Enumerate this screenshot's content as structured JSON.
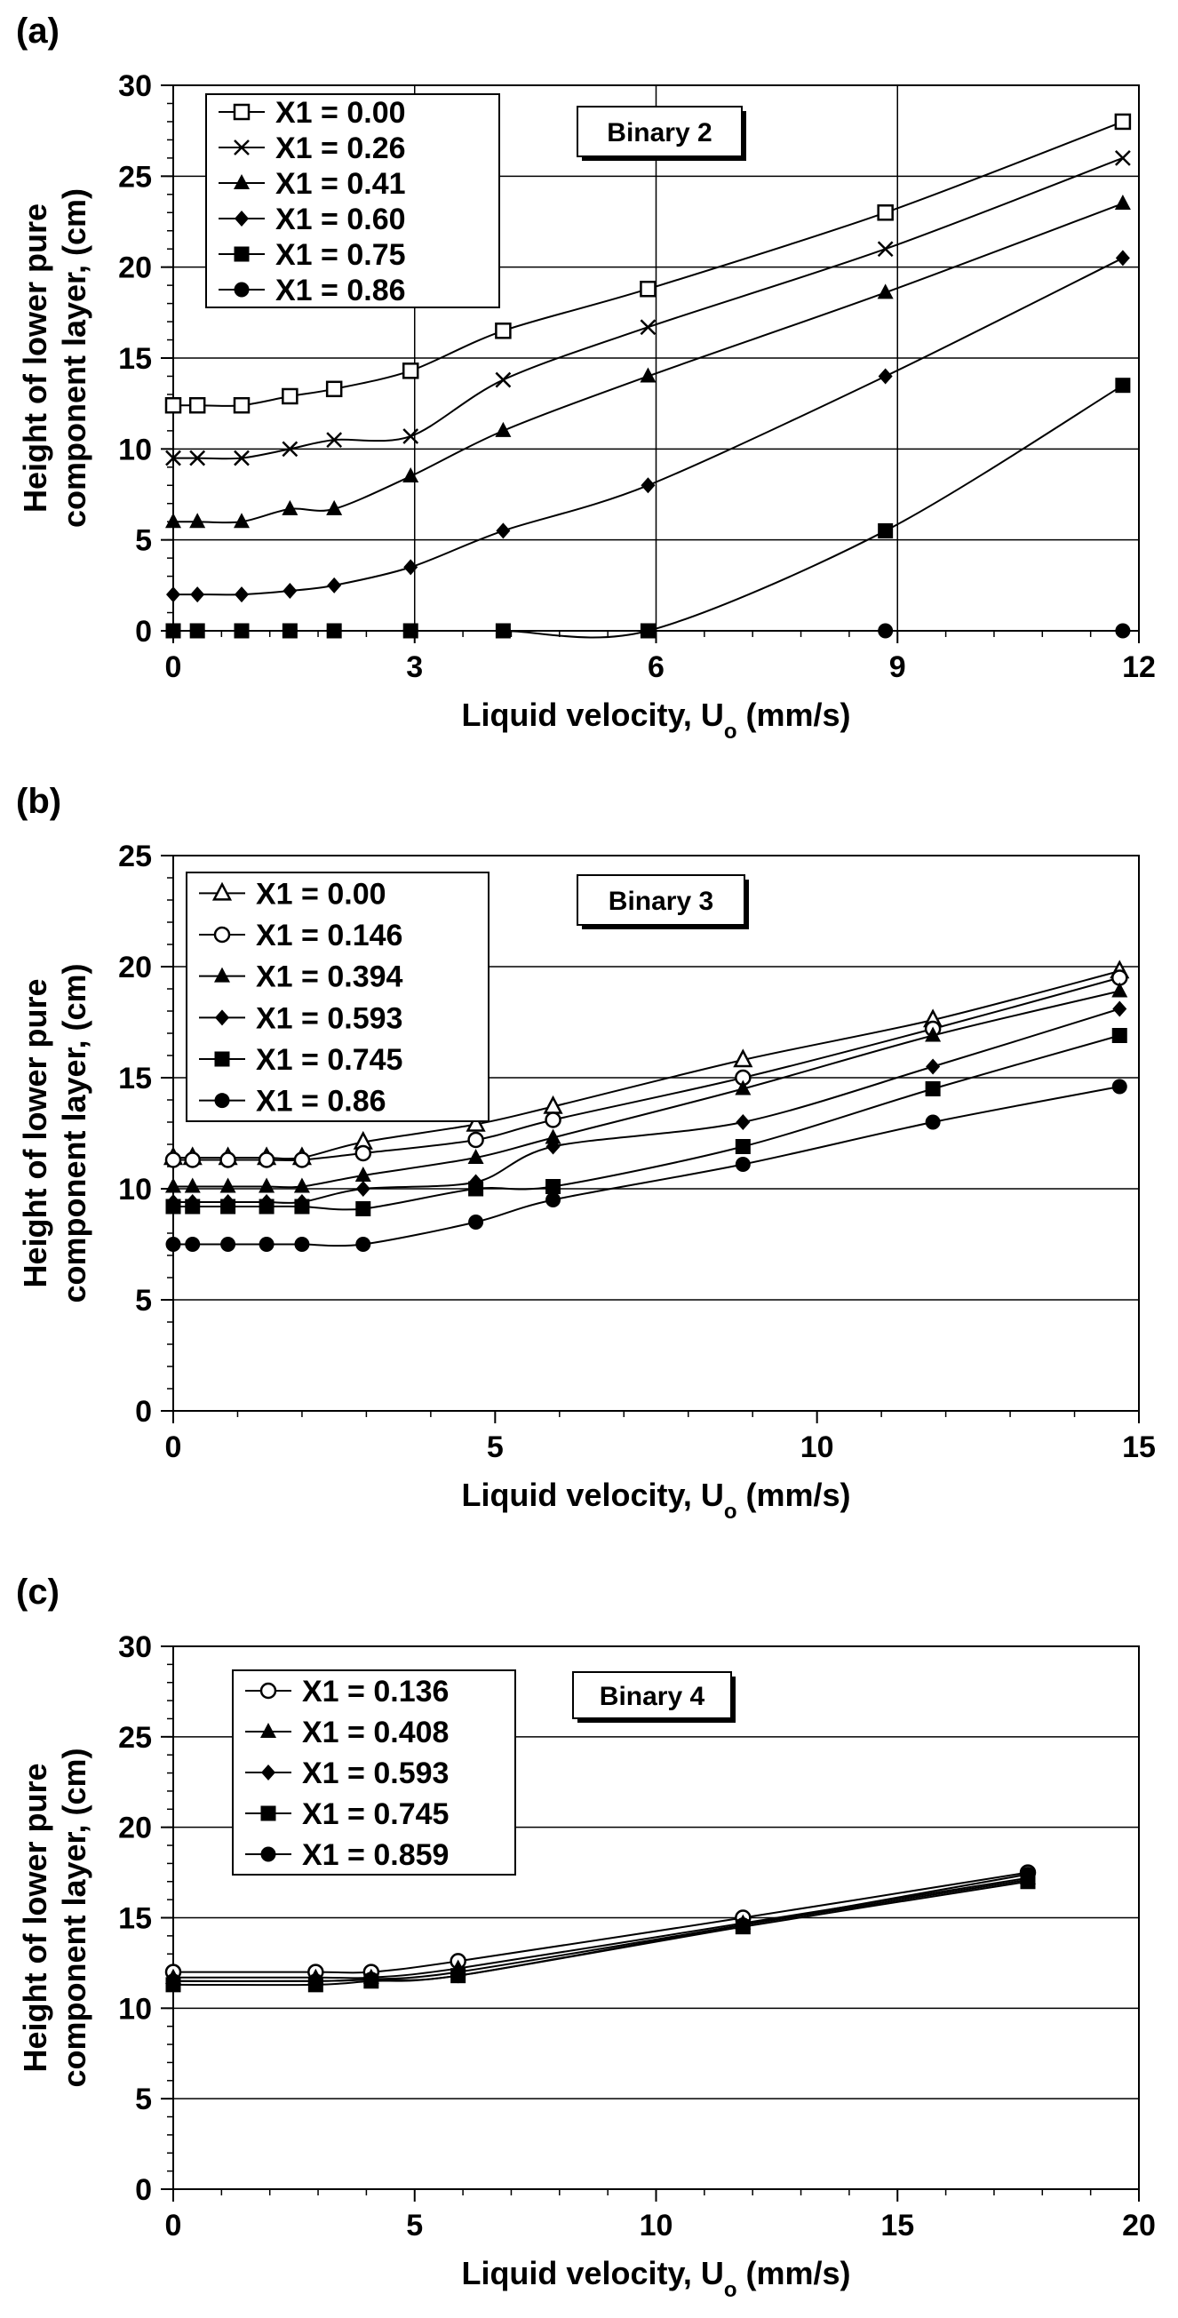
{
  "chart_data": [
    {
      "panel_label": "(a)",
      "type": "line",
      "annotation": "Binary 2",
      "xlabel_main": "Liquid velocity, U",
      "xlabel_sub": "o",
      "xlabel_tail": " (mm/s)",
      "ylabel_lines": [
        "Height of lower pure",
        "component layer, (cm)"
      ],
      "xlim": [
        0,
        12
      ],
      "ylim": [
        0,
        30
      ],
      "xticks": [
        0,
        3,
        6,
        9,
        12
      ],
      "yticks": [
        0,
        5,
        10,
        15,
        20,
        25,
        30
      ],
      "vgrid": [
        3,
        6,
        9,
        12
      ],
      "hgrid": [
        5,
        10,
        15,
        20,
        25,
        30
      ],
      "series": [
        {
          "name": "X1 = 0.00",
          "marker": "square-open",
          "x": [
            0,
            0.3,
            0.85,
            1.45,
            2.0,
            2.95,
            4.1,
            5.9,
            8.85,
            11.8
          ],
          "y": [
            12.4,
            12.4,
            12.4,
            12.9,
            13.3,
            14.3,
            16.5,
            18.8,
            23.0,
            28.0
          ]
        },
        {
          "name": "X1 = 0.26",
          "marker": "x",
          "x": [
            0,
            0.3,
            0.85,
            1.45,
            2.0,
            2.95,
            4.1,
            5.9,
            8.85,
            11.8
          ],
          "y": [
            9.5,
            9.5,
            9.5,
            10.0,
            10.5,
            10.7,
            13.8,
            16.7,
            21.0,
            26.0
          ]
        },
        {
          "name": "X1 = 0.41",
          "marker": "triangle",
          "x": [
            0,
            0.3,
            0.85,
            1.45,
            2.0,
            2.95,
            4.1,
            5.9,
            8.85,
            11.8
          ],
          "y": [
            6.0,
            6.0,
            6.0,
            6.7,
            6.7,
            8.5,
            11.0,
            14.0,
            18.6,
            23.5
          ]
        },
        {
          "name": "X1 = 0.60",
          "marker": "diamond",
          "x": [
            0,
            0.3,
            0.85,
            1.45,
            2.0,
            2.95,
            4.1,
            5.9,
            8.85,
            11.8
          ],
          "y": [
            2.0,
            2.0,
            2.0,
            2.2,
            2.5,
            3.5,
            5.5,
            8.0,
            14.0,
            20.5
          ]
        },
        {
          "name": "X1 = 0.75",
          "marker": "square",
          "x": [
            0,
            0.3,
            0.85,
            1.45,
            2.0,
            2.95,
            4.1,
            5.9,
            8.85,
            11.8
          ],
          "y": [
            0,
            0,
            0,
            0,
            0,
            0,
            0,
            0,
            5.5,
            13.5
          ]
        },
        {
          "name": "X1 = 0.86",
          "marker": "circle",
          "x": [
            0,
            0.3,
            0.85,
            1.45,
            2.0,
            2.95,
            4.1,
            5.9,
            8.85,
            11.8
          ],
          "y": [
            0,
            0,
            0,
            0,
            0,
            0,
            0,
            0,
            0,
            0
          ]
        }
      ]
    },
    {
      "panel_label": "(b)",
      "type": "line",
      "annotation": "Binary 3",
      "xlabel_main": "Liquid velocity, U",
      "xlabel_sub": "o",
      "xlabel_tail": " (mm/s)",
      "ylabel_lines": [
        "Height of lower pure",
        "component layer, (cm)"
      ],
      "xlim": [
        0,
        15
      ],
      "ylim": [
        0,
        25
      ],
      "xticks": [
        0,
        5,
        10,
        15
      ],
      "yticks": [
        0,
        5,
        10,
        15,
        20,
        25
      ],
      "vgrid": [],
      "hgrid": [
        5,
        10,
        15,
        20
      ],
      "series": [
        {
          "name": "X1 = 0.00",
          "marker": "triangle-open",
          "x": [
            0,
            0.3,
            0.85,
            1.45,
            2.0,
            2.95,
            4.7,
            5.9,
            8.85,
            11.8,
            14.7
          ],
          "y": [
            11.4,
            11.4,
            11.4,
            11.4,
            11.4,
            12.1,
            12.9,
            13.7,
            15.8,
            17.6,
            19.8
          ]
        },
        {
          "name": "X1 = 0.146",
          "marker": "circle-open",
          "x": [
            0,
            0.3,
            0.85,
            1.45,
            2.0,
            2.95,
            4.7,
            5.9,
            8.85,
            11.8,
            14.7
          ],
          "y": [
            11.3,
            11.3,
            11.3,
            11.3,
            11.3,
            11.6,
            12.2,
            13.1,
            15.0,
            17.2,
            19.5
          ]
        },
        {
          "name": "X1 = 0.394",
          "marker": "triangle",
          "x": [
            0,
            0.3,
            0.85,
            1.45,
            2.0,
            2.95,
            4.7,
            5.9,
            8.85,
            11.8,
            14.7
          ],
          "y": [
            10.1,
            10.1,
            10.1,
            10.1,
            10.1,
            10.6,
            11.4,
            12.3,
            14.5,
            16.9,
            18.9
          ]
        },
        {
          "name": "X1 = 0.593",
          "marker": "diamond",
          "x": [
            0,
            0.3,
            0.85,
            1.45,
            2.0,
            2.95,
            4.7,
            5.9,
            8.85,
            11.8,
            14.7
          ],
          "y": [
            9.4,
            9.4,
            9.4,
            9.4,
            9.4,
            10.0,
            10.3,
            11.9,
            13.0,
            15.5,
            18.1
          ]
        },
        {
          "name": "X1 = 0.745",
          "marker": "square",
          "x": [
            0,
            0.3,
            0.85,
            1.45,
            2.0,
            2.95,
            4.7,
            5.9,
            8.85,
            11.8,
            14.7
          ],
          "y": [
            9.2,
            9.2,
            9.2,
            9.2,
            9.2,
            9.1,
            10.0,
            10.1,
            11.9,
            14.5,
            16.9
          ]
        },
        {
          "name": "X1 = 0.86",
          "marker": "circle",
          "x": [
            0,
            0.3,
            0.85,
            1.45,
            2.0,
            2.95,
            4.7,
            5.9,
            8.85,
            11.8,
            14.7
          ],
          "y": [
            7.5,
            7.5,
            7.5,
            7.5,
            7.5,
            7.5,
            8.5,
            9.5,
            11.1,
            13.0,
            14.6
          ]
        }
      ]
    },
    {
      "panel_label": "(c)",
      "type": "line",
      "annotation": "Binary 4",
      "xlabel_main": "Liquid velocity, U",
      "xlabel_sub": "o",
      "xlabel_tail": " (mm/s)",
      "ylabel_lines": [
        "Height of lower pure",
        "component layer, (cm)"
      ],
      "xlim": [
        0,
        20
      ],
      "ylim": [
        0,
        30
      ],
      "xticks": [
        0,
        5,
        10,
        15,
        20
      ],
      "yticks": [
        0,
        5,
        10,
        15,
        20,
        25,
        30
      ],
      "vgrid": [],
      "hgrid": [
        5,
        10,
        15,
        20,
        25
      ],
      "series": [
        {
          "name": "X1 = 0.136",
          "marker": "circle-open",
          "x": [
            0,
            2.95,
            4.1,
            5.9,
            11.8,
            17.7
          ],
          "y": [
            12.0,
            12.0,
            12.0,
            12.6,
            15.0,
            17.5
          ]
        },
        {
          "name": "X1 = 0.408",
          "marker": "triangle",
          "x": [
            0,
            2.95,
            4.1,
            5.9,
            11.8,
            17.7
          ],
          "y": [
            11.7,
            11.7,
            11.7,
            12.2,
            14.7,
            17.2
          ]
        },
        {
          "name": "X1 = 0.593",
          "marker": "diamond",
          "x": [
            0,
            2.95,
            4.1,
            5.9,
            11.8,
            17.7
          ],
          "y": [
            11.5,
            11.5,
            11.6,
            12.0,
            14.6,
            17.1
          ]
        },
        {
          "name": "X1 = 0.745",
          "marker": "square",
          "x": [
            0,
            2.95,
            4.1,
            5.9,
            11.8,
            17.7
          ],
          "y": [
            11.3,
            11.3,
            11.5,
            11.8,
            14.5,
            17.0
          ]
        },
        {
          "name": "X1 = 0.859",
          "marker": "circle",
          "x": [
            0,
            2.95,
            4.1,
            5.9,
            11.8,
            17.7
          ],
          "y": [
            11.5,
            11.5,
            11.6,
            11.8,
            14.6,
            17.4
          ]
        }
      ]
    }
  ]
}
